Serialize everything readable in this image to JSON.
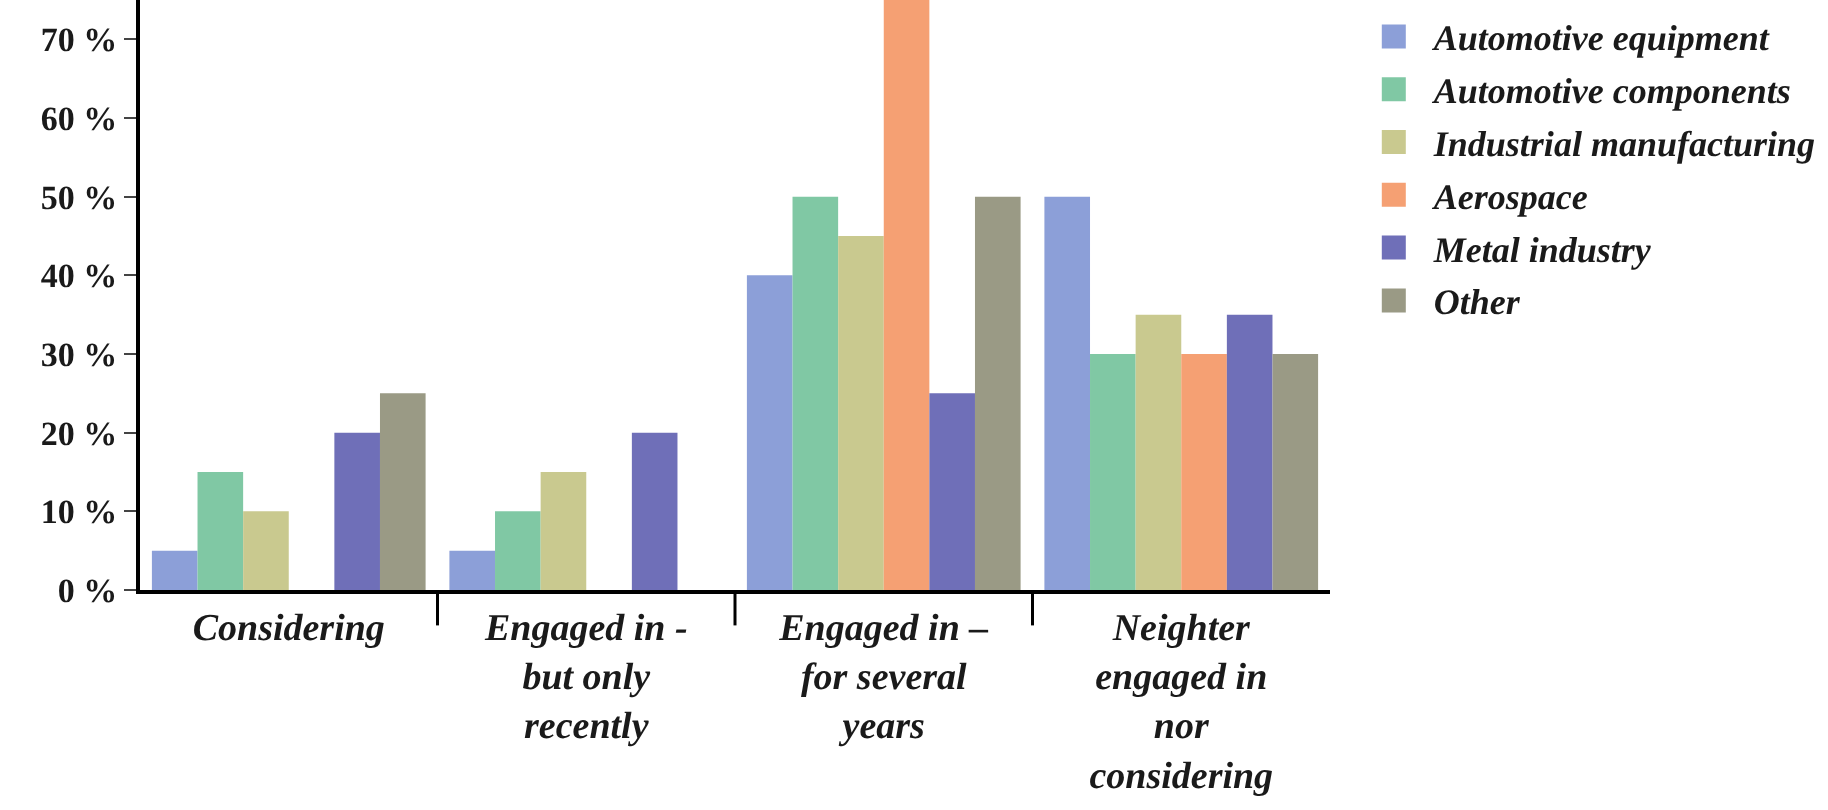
{
  "chart_data": {
    "type": "bar",
    "categories": [
      "Considering",
      "Engaged in - but only recently",
      "Engaged in – for several years",
      "Neighter engaged in nor considering"
    ],
    "series": [
      {
        "name": "Automotive equipment",
        "color": "#8c9fd8",
        "values": [
          5,
          5,
          40,
          50
        ]
      },
      {
        "name": "Automotive components",
        "color": "#80c8a4",
        "values": [
          15,
          10,
          50,
          30
        ]
      },
      {
        "name": "Industrial manufacturing",
        "color": "#c9c98f",
        "values": [
          10,
          15,
          45,
          35
        ]
      },
      {
        "name": "Aerospace",
        "color": "#f5a073",
        "values": [
          0,
          0,
          75,
          30
        ]
      },
      {
        "name": "Metal industry",
        "color": "#6f6fb8",
        "values": [
          20,
          20,
          25,
          35
        ]
      },
      {
        "name": "Other",
        "color": "#9a9a85",
        "values": [
          25,
          0,
          50,
          30
        ]
      }
    ],
    "ylim": [
      0,
      75
    ],
    "yticks": [
      {
        "value": 0,
        "label": "0 %"
      },
      {
        "value": 10,
        "label": "10 %"
      },
      {
        "value": 20,
        "label": "20 %"
      },
      {
        "value": 30,
        "label": "30 %"
      },
      {
        "value": 40,
        "label": "40 %"
      },
      {
        "value": 50,
        "label": "50 %"
      },
      {
        "value": 60,
        "label": "60 %"
      },
      {
        "value": 70,
        "label": "70 %"
      }
    ],
    "grid": false,
    "legend": "right"
  }
}
